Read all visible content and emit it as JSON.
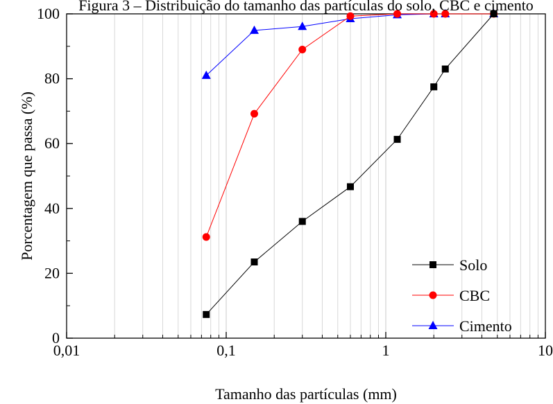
{
  "chart_data": {
    "type": "line",
    "title": "Figura 3 – Distribuição do tamanho das partículas do solo, CBC e cimento",
    "xlabel": "Tamanho das partículas (mm)",
    "ylabel": "Porcentagem que passa (%)",
    "x_scale": "log",
    "xlim": [
      0.01,
      10
    ],
    "ylim": [
      0,
      100
    ],
    "x_ticks": [
      0.01,
      0.1,
      1,
      10
    ],
    "x_tick_labels": [
      "0,01",
      "0,1",
      "1",
      "10"
    ],
    "y_ticks": [
      0,
      20,
      40,
      60,
      80,
      100
    ],
    "y_tick_labels": [
      "0",
      "20",
      "40",
      "60",
      "80",
      "100"
    ],
    "grid": "vertical minor",
    "legend_position": "bottom-right",
    "series": [
      {
        "name": "Solo",
        "color": "#000000",
        "marker": "square",
        "x": [
          0.075,
          0.15,
          0.3,
          0.6,
          1.18,
          2.0,
          2.36,
          4.75
        ],
        "y": [
          7.3,
          23.5,
          36.0,
          46.7,
          61.3,
          77.5,
          83.0,
          100.0
        ]
      },
      {
        "name": "CBC",
        "color": "#ff0000",
        "marker": "circle",
        "x": [
          0.075,
          0.15,
          0.3,
          0.6,
          1.18,
          2.0,
          2.36,
          4.75
        ],
        "y": [
          31.2,
          69.2,
          89.0,
          99.3,
          100.0,
          100.0,
          100.0,
          100.0
        ]
      },
      {
        "name": "Cimento",
        "color": "#0000ff",
        "marker": "triangle",
        "x": [
          0.075,
          0.15,
          0.3,
          0.6,
          1.18,
          2.0,
          2.36,
          4.75
        ],
        "y": [
          81.0,
          94.9,
          96.1,
          98.5,
          99.7,
          100.0,
          100.0,
          100.0
        ]
      }
    ]
  }
}
